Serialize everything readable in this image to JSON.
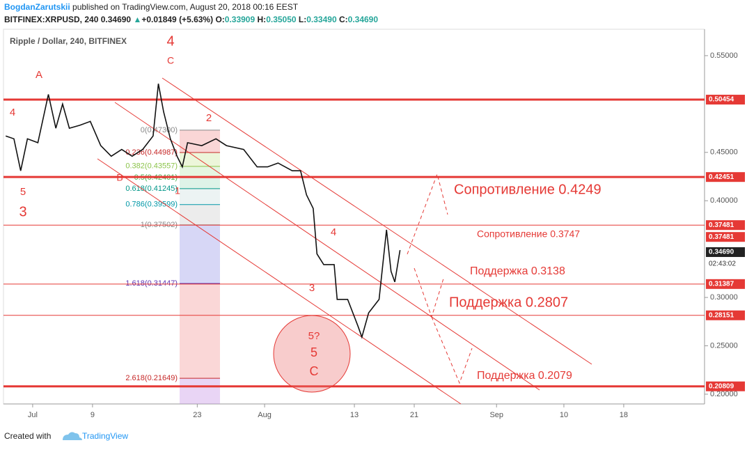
{
  "header": {
    "author": "BogdanZarutskii",
    "published": "published on TradingView.com, August 20, 2018 00:16 EEST",
    "symbol": "BITFINEX:XRPUSD, 240",
    "last": "0.34690",
    "arrow": "▲",
    "change": "+0.01849 (+5.63%)",
    "o_key": "O:",
    "o": "0.33909",
    "h_key": "H:",
    "h": "0.35050",
    "l_key": "L:",
    "l": "0.33490",
    "c_key": "C:",
    "c": "0.34690"
  },
  "footer": {
    "created": "Created with",
    "brand": "TradingView"
  },
  "chart_data": {
    "type": "line",
    "title": "Ripple / Dollar, 240, BITFINEX",
    "series": [
      {
        "color": "#111111",
        "x": [
          -3.6,
          -2.5,
          -1.6,
          -0.7,
          0.7,
          2.1,
          3.1,
          4.0,
          4.9,
          6.3,
          7.7,
          9.1,
          10.5,
          11.9,
          13.3,
          14.7,
          16.1,
          16.8,
          17.5,
          18.4,
          19.3,
          20.0,
          20.7,
          22.6,
          24.5,
          25.9,
          28.2,
          30.0,
          31.4,
          32.8,
          34.7,
          35.8,
          36.6,
          37.5,
          38.0,
          38.9,
          40.3,
          40.7,
          42.1,
          43.5,
          44.0,
          44.9,
          46.3,
          47.3,
          47.9,
          48.4,
          49.1
        ],
        "values": [
          0.467,
          0.464,
          0.431,
          0.464,
          0.46,
          0.51,
          0.475,
          0.5,
          0.475,
          0.478,
          0.482,
          0.457,
          0.446,
          0.453,
          0.446,
          0.453,
          0.467,
          0.521,
          0.492,
          0.464,
          0.446,
          0.435,
          0.46,
          0.457,
          0.464,
          0.457,
          0.453,
          0.435,
          0.435,
          0.439,
          0.431,
          0.431,
          0.406,
          0.392,
          0.345,
          0.334,
          0.334,
          0.298,
          0.298,
          0.27,
          0.259,
          0.284,
          0.298,
          0.37,
          0.327,
          0.316,
          0.349
        ]
      }
    ],
    "xlim": [
      -3.9,
      89.8
    ],
    "xticks": [
      {
        "value": 0,
        "label": "Jul"
      },
      {
        "value": 8,
        "label": "9"
      },
      {
        "value": 22,
        "label": "23"
      },
      {
        "value": 31,
        "label": "Aug"
      },
      {
        "value": 43,
        "label": "13"
      },
      {
        "value": 51,
        "label": "21"
      },
      {
        "value": 62,
        "label": "Sep"
      },
      {
        "value": 71,
        "label": "10"
      },
      {
        "value": 79,
        "label": "18"
      }
    ],
    "ylim": [
      0.1899,
      0.5773
    ],
    "yticks": [
      {
        "value": 0.55,
        "label": "0.55000"
      },
      {
        "value": 0.45,
        "label": "0.45000"
      },
      {
        "value": 0.4,
        "label": "0.40000"
      },
      {
        "value": 0.3,
        "label": "0.30000"
      },
      {
        "value": 0.25,
        "label": "0.25000"
      },
      {
        "value": 0.2,
        "label": "0.20000"
      }
    ],
    "levels": [
      {
        "value": 0.50454,
        "label": "0.50454",
        "thick": true
      },
      {
        "value": 0.42451,
        "label": "0.42451",
        "thick": true
      },
      {
        "value": 0.37481,
        "label": "0.37481",
        "thick": false
      },
      {
        "value": 0.31387,
        "label": "0.31387",
        "thick": false
      },
      {
        "value": 0.28151,
        "label": "0.28151",
        "thick": false
      },
      {
        "value": 0.20809,
        "label": "0.20809",
        "thick": true
      }
    ],
    "price_tags": [
      {
        "value": 0.37481,
        "label": "0.37481"
      },
      {
        "value": 0.3469,
        "label": "0.34690"
      }
    ],
    "countdown": "02:43:02",
    "fib": [
      {
        "value": 0.473,
        "label": "0(0.47300)"
      },
      {
        "value": 0.44987,
        "label": "0.236(0.44987)"
      },
      {
        "value": 0.43557,
        "label": "0.382(0.43557)"
      },
      {
        "value": 0.42401,
        "label": "0.5(0.42401)"
      },
      {
        "value": 0.41245,
        "label": "0.618(0.41245)"
      },
      {
        "value": 0.39599,
        "label": "0.786(0.39599)"
      },
      {
        "value": 0.37502,
        "label": "1(0.37502)"
      },
      {
        "value": 0.31447,
        "label": "1.618(0.31447)"
      },
      {
        "value": 0.21649,
        "label": "2.618(0.21649)"
      }
    ],
    "waves": [
      "4",
      "C",
      "A",
      "4",
      "2",
      "B",
      "5",
      "3",
      "1",
      "4",
      "3",
      "5?",
      "5",
      "C"
    ],
    "annotations": [
      "Сопротивление 0.4249",
      "Сопротивление 0.3747",
      "Поддержка 0.3138",
      "Поддержка 0.2807",
      "Поддержка 0.2079"
    ]
  }
}
